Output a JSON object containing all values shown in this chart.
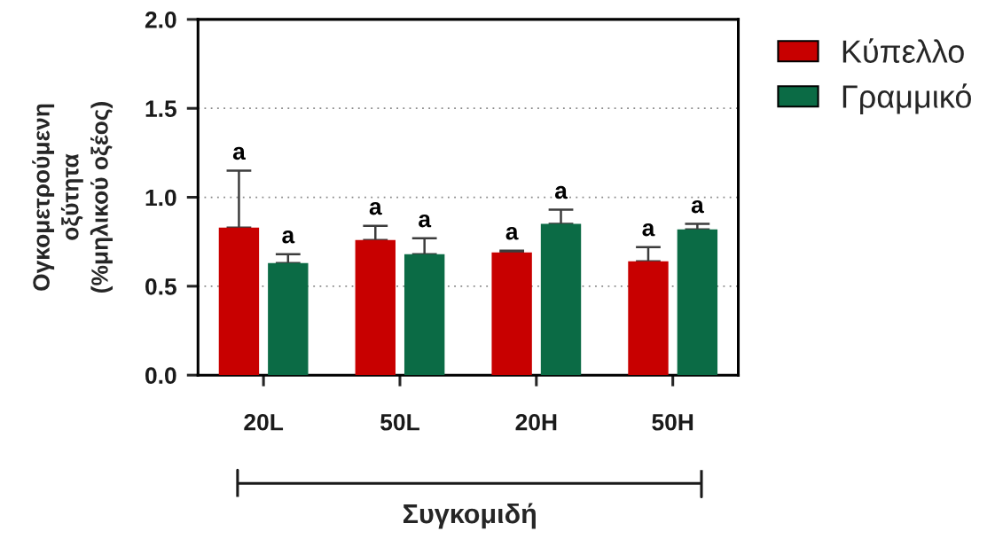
{
  "chart_data": {
    "type": "bar",
    "ylabel": "Ογκομετρούμενη\nοξύτητα\n(%μηλικού οξέος)",
    "xlabel": "Συγκομιδή",
    "categories": [
      "20L",
      "50L",
      "20H",
      "50H"
    ],
    "series": [
      {
        "name": "Κύπελλο",
        "color": "#c80000",
        "values": [
          0.83,
          0.76,
          0.69,
          0.64
        ],
        "errors": [
          [
            0.83,
            1.15
          ],
          [
            0.76,
            0.84
          ],
          [
            0.69,
            0.7
          ],
          [
            0.64,
            0.72
          ]
        ],
        "value_labels": [
          "a",
          "a",
          "a",
          "a"
        ]
      },
      {
        "name": "Γραμμικό",
        "color": "#0b6b45",
        "values": [
          0.63,
          0.68,
          0.85,
          0.82
        ],
        "errors": [
          [
            0.63,
            0.68
          ],
          [
            0.68,
            0.77
          ],
          [
            0.85,
            0.93
          ],
          [
            0.82,
            0.85
          ]
        ],
        "value_labels": [
          "a",
          "a",
          "a",
          "a"
        ]
      }
    ],
    "ylim": [
      0,
      2
    ],
    "yticks": [
      {
        "value": 0,
        "label": "0.0"
      },
      {
        "value": 0.5,
        "label": "0.5"
      },
      {
        "value": 1,
        "label": "1.0"
      },
      {
        "value": 1.5,
        "label": "1.5"
      },
      {
        "value": 2,
        "label": "2.0"
      }
    ],
    "grid": "y",
    "legend": "top right"
  }
}
